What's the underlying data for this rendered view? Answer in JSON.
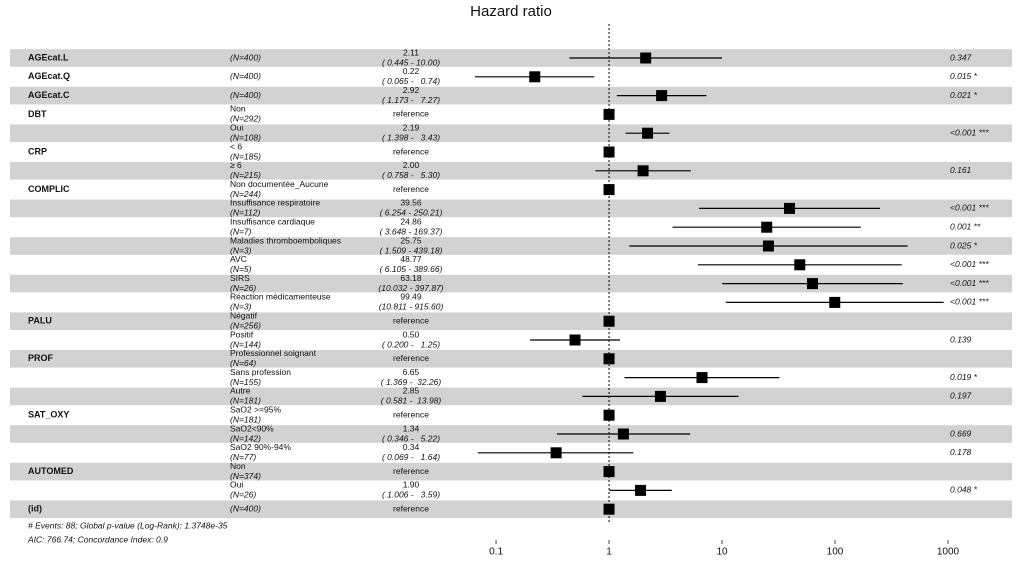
{
  "chart_data": {
    "type": "forest",
    "title": "Hazard ratio",
    "xscale": "log",
    "xlim": [
      0.06,
      1000
    ],
    "xticks": [
      0.1,
      1,
      10,
      100,
      1000
    ],
    "reference_line": 1,
    "stripe_colors": [
      "#d2d2d2",
      "#ffffff"
    ],
    "marker_color": "#000000",
    "rows": [
      {
        "variable": "AGEcat.L",
        "n": "(N=400)",
        "estimate": 2.11,
        "lower": 0.445,
        "upper": 10.0,
        "ci_label": "( 0.445 - 10.00)",
        "p_label": "0.347"
      },
      {
        "variable": "AGEcat.Q",
        "n": "(N=400)",
        "estimate": 0.22,
        "lower": 0.065,
        "upper": 0.74,
        "ci_label": "( 0.065 -   0.74)",
        "p_label": "0.015 *"
      },
      {
        "variable": "AGEcat.C",
        "n": "(N=400)",
        "estimate": 2.92,
        "lower": 1.173,
        "upper": 7.27,
        "ci_label": "( 1.173 -   7.27)",
        "p_label": "0.021 *"
      },
      {
        "variable": "DBT",
        "level": "Non",
        "n": "(N=292)",
        "estimate": 1,
        "estimate_label": "reference"
      },
      {
        "level": "Oui",
        "n": "(N=108)",
        "estimate": 2.19,
        "lower": 1.398,
        "upper": 3.43,
        "ci_label": "( 1.398 -   3.43)",
        "p_label": "<0.001 ***"
      },
      {
        "variable": "CRP",
        "level": "< 6",
        "n": "(N=185)",
        "estimate": 1,
        "estimate_label": "reference"
      },
      {
        "level": "≥ 6",
        "n": "(N=215)",
        "estimate": 2.0,
        "estimate_label": "2.00",
        "lower": 0.758,
        "upper": 5.3,
        "ci_label": "( 0.758 -   5.30)",
        "p_label": "0.161"
      },
      {
        "variable": "COMPLIC",
        "level": "Non documentée_Aucune",
        "n": "(N=244)",
        "estimate": 1,
        "estimate_label": "reference"
      },
      {
        "level": "Insuffisance respiratoire",
        "n": "(N=112)",
        "estimate": 39.56,
        "lower": 6.254,
        "upper": 250.21,
        "ci_label": "( 6.254 - 250.21)",
        "p_label": "<0.001 ***"
      },
      {
        "level": "Insuffisance cardiaque",
        "n": "(N=7)",
        "estimate": 24.86,
        "lower": 3.648,
        "upper": 169.37,
        "ci_label": "( 3.648 - 169.37)",
        "p_label": "0.001 **"
      },
      {
        "level": "Maladies thromboemboliques",
        "n": "(N=3)",
        "estimate": 25.75,
        "lower": 1.509,
        "upper": 439.18,
        "ci_label": "( 1.509 - 439.18)",
        "p_label": "0.025 *"
      },
      {
        "level": "AVC",
        "n": "(N=5)",
        "estimate": 48.77,
        "lower": 6.105,
        "upper": 389.66,
        "ci_label": "( 6.105 - 389.66)",
        "p_label": "<0.001 ***"
      },
      {
        "level": "SIRS",
        "n": "(N=26)",
        "estimate": 63.18,
        "lower": 10.032,
        "upper": 397.87,
        "ci_label": "(10.032 - 397.87)",
        "p_label": "<0.001 ***"
      },
      {
        "level": "Réaction médicamenteuse",
        "n": "(N=3)",
        "estimate": 99.49,
        "lower": 10.811,
        "upper": 915.6,
        "ci_label": "(10.811 - 915.60)",
        "p_label": "<0.001 ***"
      },
      {
        "variable": "PALU",
        "level": "Négatif",
        "n": "(N=256)",
        "estimate": 1,
        "estimate_label": "reference"
      },
      {
        "level": "Positif",
        "n": "(N=144)",
        "estimate": 0.5,
        "estimate_label": "0.50",
        "lower": 0.2,
        "upper": 1.25,
        "ci_label": "( 0.200 -   1.25)",
        "p_label": "0.139"
      },
      {
        "variable": "PROF",
        "level": "Professionnel soignant",
        "n": "(N=64)",
        "estimate": 1,
        "estimate_label": "reference"
      },
      {
        "level": "Sans profession",
        "n": "(N=155)",
        "estimate": 6.65,
        "lower": 1.369,
        "upper": 32.26,
        "ci_label": "( 1.369 -  32.26)",
        "p_label": "0.019 *"
      },
      {
        "level": "Autre",
        "n": "(N=181)",
        "estimate": 2.85,
        "lower": 0.581,
        "upper": 13.98,
        "ci_label": "( 0.581 -  13.98)",
        "p_label": "0.197"
      },
      {
        "variable": "SAT_OXY",
        "level": "SaO2 >=95%",
        "n": "(N=181)",
        "estimate": 1,
        "estimate_label": "reference"
      },
      {
        "level": "SaO2<90%",
        "n": "(N=142)",
        "estimate": 1.34,
        "lower": 0.346,
        "upper": 5.22,
        "ci_label": "( 0.346 -   5.22)",
        "p_label": "0.669"
      },
      {
        "level": "SaO2 90%-94%",
        "n": "(N=77)",
        "estimate": 0.34,
        "lower": 0.069,
        "upper": 1.64,
        "ci_label": "( 0.069 -   1.64)",
        "p_label": "0.178"
      },
      {
        "variable": "AUTOMED",
        "level": "Non",
        "n": "(N=374)",
        "estimate": 1,
        "estimate_label": "reference"
      },
      {
        "level": "Oui",
        "n": "(N=26)",
        "estimate": 1.9,
        "estimate_label": "1.90",
        "lower": 1.006,
        "upper": 3.59,
        "ci_label": "( 1.006 -   3.59)",
        "p_label": "0.048 *"
      },
      {
        "variable": "(id)",
        "n": "(N=400)",
        "estimate": 1,
        "estimate_label": "reference"
      }
    ],
    "footnotes": [
      "# Events: 88; Global p-value (Log-Rank): 1.3748e-35",
      "AIC: 766.74; Concordance Index: 0.9"
    ]
  }
}
